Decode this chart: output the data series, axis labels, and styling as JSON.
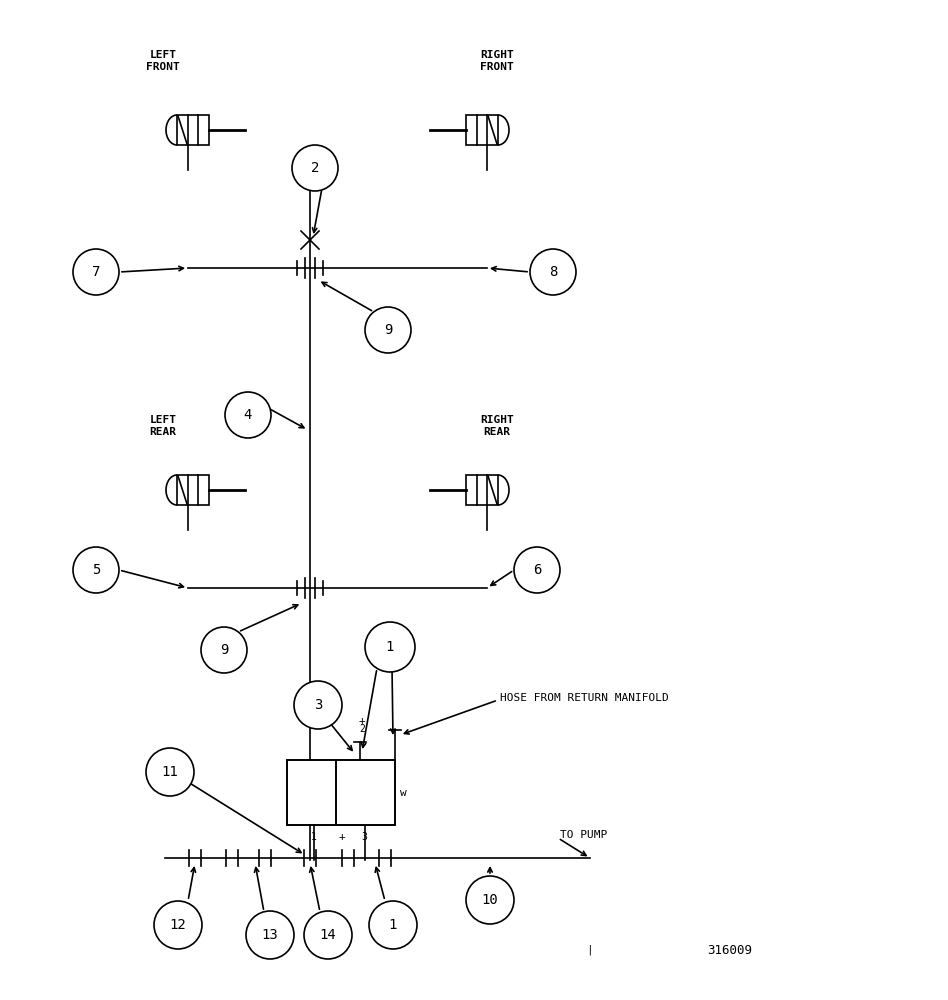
{
  "bg_color": "#ffffff",
  "fg_color": "#000000",
  "title_text": "316009",
  "label_left_front": "LEFT\nFRONT",
  "label_right_front": "RIGHT\nFRONT",
  "label_left_rear": "LEFT\nREAR",
  "label_right_rear": "RIGHT\nREAR",
  "label_hose": "HOSE FROM RETURN MANIFOLD",
  "label_pump": "TO PUMP",
  "figw": 9.48,
  "figh": 10.0,
  "dpi": 100
}
